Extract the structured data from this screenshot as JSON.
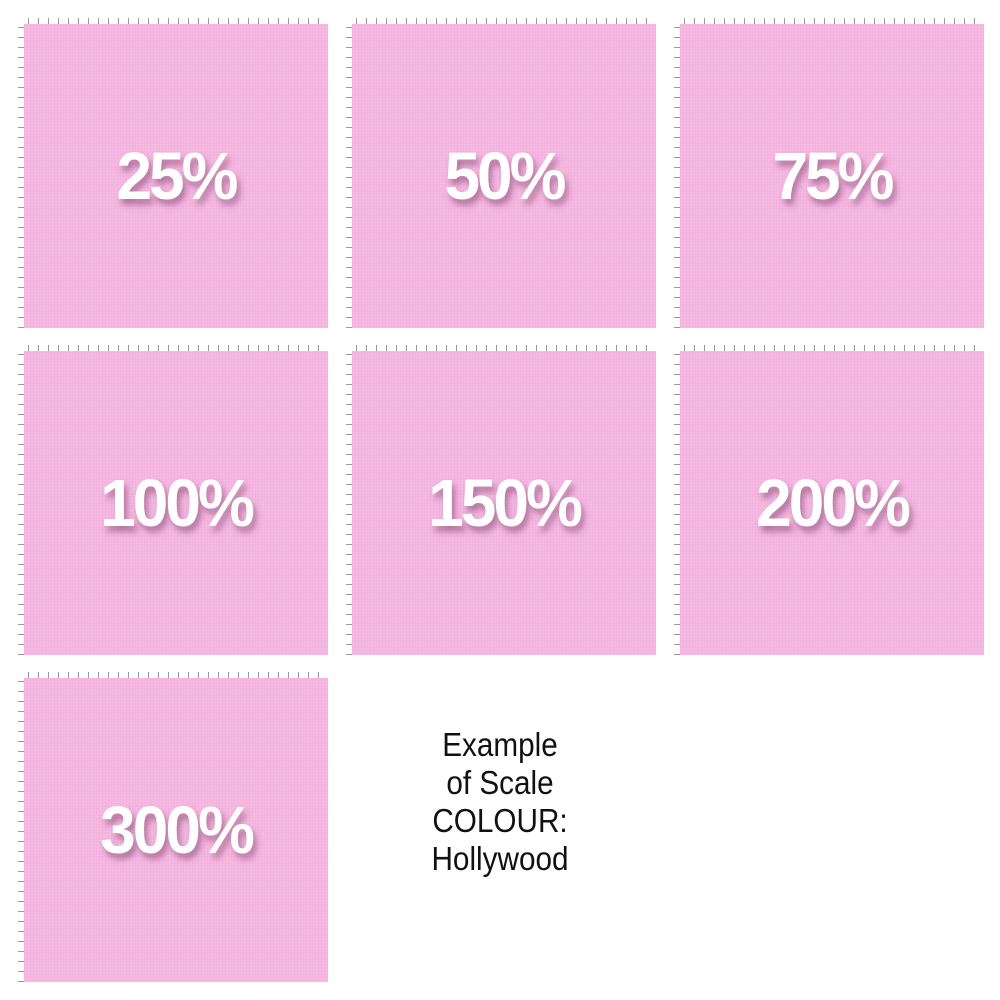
{
  "tiles": [
    {
      "label": "25%"
    },
    {
      "label": "50%"
    },
    {
      "label": "75%"
    },
    {
      "label": "100%"
    },
    {
      "label": "150%"
    },
    {
      "label": "200%"
    },
    {
      "label": "300%"
    }
  ],
  "caption": {
    "line1": "Example",
    "line2": "of Scale",
    "line3": "COLOUR:",
    "line4": "Hollywood"
  },
  "colors": {
    "fabric": "#f5b6e0",
    "label": "#ffffff"
  }
}
